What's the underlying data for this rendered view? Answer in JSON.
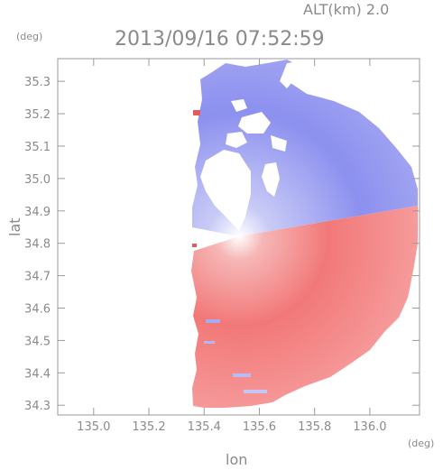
{
  "header": {
    "altitude_label": "ALT(km) 2.0",
    "timestamp": "2013/09/16 07:52:59",
    "y_unit": "(deg)",
    "x_unit": "(deg)"
  },
  "chart_data": {
    "type": "heatmap",
    "title": "2013/09/16 07:52:59",
    "xlabel": "lon",
    "ylabel": "lat",
    "xlim": [
      134.87,
      136.18
    ],
    "ylim": [
      34.27,
      35.37
    ],
    "x_ticks": [
      "135.0",
      "135.2",
      "135.4",
      "135.6",
      "135.8",
      "136.0"
    ],
    "x_tick_values": [
      135.0,
      135.2,
      135.4,
      135.6,
      135.8,
      136.0
    ],
    "y_ticks": [
      "35.3",
      "35.2",
      "35.1",
      "35.0",
      "34.9",
      "34.8",
      "34.7",
      "34.6",
      "34.5",
      "34.4",
      "34.3"
    ],
    "y_tick_values": [
      35.3,
      35.2,
      35.1,
      35.0,
      34.9,
      34.8,
      34.7,
      34.6,
      34.5,
      34.4,
      34.3
    ],
    "radar_center": [
      135.52,
      34.82
    ],
    "colors": {
      "approaching": "#8a8ff0",
      "receding": "#f27c7c",
      "zero": "#ffffff",
      "axis": "#9a9a9a"
    },
    "grid": false
  }
}
